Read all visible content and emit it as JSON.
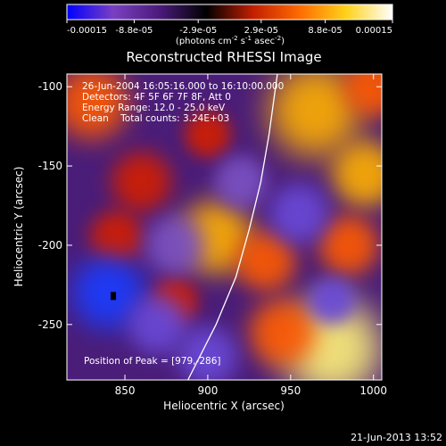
{
  "colorbar": {
    "ticks": [
      "-0.00015",
      "-8.8e-05",
      "-2.9e-05",
      "2.9e-05",
      "8.8e-05",
      "0.00015"
    ],
    "tick_values": [
      -0.00015,
      -8.8e-05,
      -2.9e-05,
      2.9e-05,
      8.8e-05,
      0.00015
    ],
    "range": [
      -0.00015,
      0.00015
    ],
    "units_text": "(photons cm",
    "units_sup1": "-2",
    "units_mid1": " s",
    "units_sup2": "-1",
    "units_mid2": " asec",
    "units_sup3": "-2",
    "units_end": ")",
    "colors": [
      "#0000ff",
      "#7a3fc2",
      "#4a1a7a",
      "#000000",
      "#c21f00",
      "#ff6a00",
      "#ffd21a",
      "#ffffff"
    ]
  },
  "annotations": {
    "time_range": "26-Jun-2004 16:05:16.000 to 16:10:00.000",
    "detectors": "Detectors: 4F 5F 6F 7F 8F, Att 0",
    "energy": "Energy Range: 12.0 - 25.0 keV",
    "clean": "Clean    Total counts: 3.24E+03",
    "peak": "Position of Peak = [979,-286]"
  },
  "footer_date": "21-Jun-2013 13:52",
  "chart_data": {
    "type": "heatmap",
    "title": "Reconstructed RHESSI Image",
    "xlabel": "Heliocentric X (arcsec)",
    "ylabel": "Heliocentric Y (arcsec)",
    "xlim": [
      815,
      1005
    ],
    "ylim": [
      -285,
      -92
    ],
    "x_ticks": [
      850,
      900,
      950,
      1000
    ],
    "y_ticks": [
      -100,
      -150,
      -200,
      -250
    ],
    "x_tick_labels": [
      "850",
      "900",
      "950",
      "1000"
    ],
    "y_tick_labels": [
      "-100",
      "-150",
      "-200",
      "-250"
    ],
    "limb_curve": [
      [
        888,
        -285
      ],
      [
        905,
        -250
      ],
      [
        917,
        -220
      ],
      [
        925,
        -190
      ],
      [
        932,
        -160
      ],
      [
        937,
        -130
      ],
      [
        942,
        -92
      ]
    ],
    "sources": [
      {
        "x": 830,
        "y": -110,
        "v": 0.6,
        "r": 22
      },
      {
        "x": 860,
        "y": -160,
        "v": 0.55,
        "r": 18
      },
      {
        "x": 845,
        "y": -195,
        "v": 0.45,
        "r": 16
      },
      {
        "x": 905,
        "y": -195,
        "v": 0.8,
        "r": 22
      },
      {
        "x": 935,
        "y": -210,
        "v": 0.6,
        "r": 18
      },
      {
        "x": 965,
        "y": -115,
        "v": 0.85,
        "r": 28
      },
      {
        "x": 995,
        "y": -155,
        "v": 0.8,
        "r": 20
      },
      {
        "x": 985,
        "y": -200,
        "v": 0.65,
        "r": 18
      },
      {
        "x": 1000,
        "y": -100,
        "v": 0.7,
        "r": 18
      },
      {
        "x": 975,
        "y": -265,
        "v": 1.0,
        "r": 30
      },
      {
        "x": 945,
        "y": -255,
        "v": 0.6,
        "r": 20
      },
      {
        "x": 900,
        "y": -130,
        "v": 0.5,
        "r": 14
      },
      {
        "x": 880,
        "y": -235,
        "v": 0.45,
        "r": 14
      },
      {
        "x": 840,
        "y": -230,
        "v": -1.0,
        "r": 22
      },
      {
        "x": 870,
        "y": -250,
        "v": -0.6,
        "r": 18
      },
      {
        "x": 900,
        "y": -270,
        "v": -0.55,
        "r": 18
      },
      {
        "x": 955,
        "y": -180,
        "v": -0.55,
        "r": 18
      },
      {
        "x": 975,
        "y": -235,
        "v": -0.5,
        "r": 14
      },
      {
        "x": 880,
        "y": -200,
        "v": -0.4,
        "r": 18
      },
      {
        "x": 920,
        "y": -160,
        "v": -0.35,
        "r": 16
      }
    ],
    "peak_marker": [
      843,
      -232
    ]
  }
}
